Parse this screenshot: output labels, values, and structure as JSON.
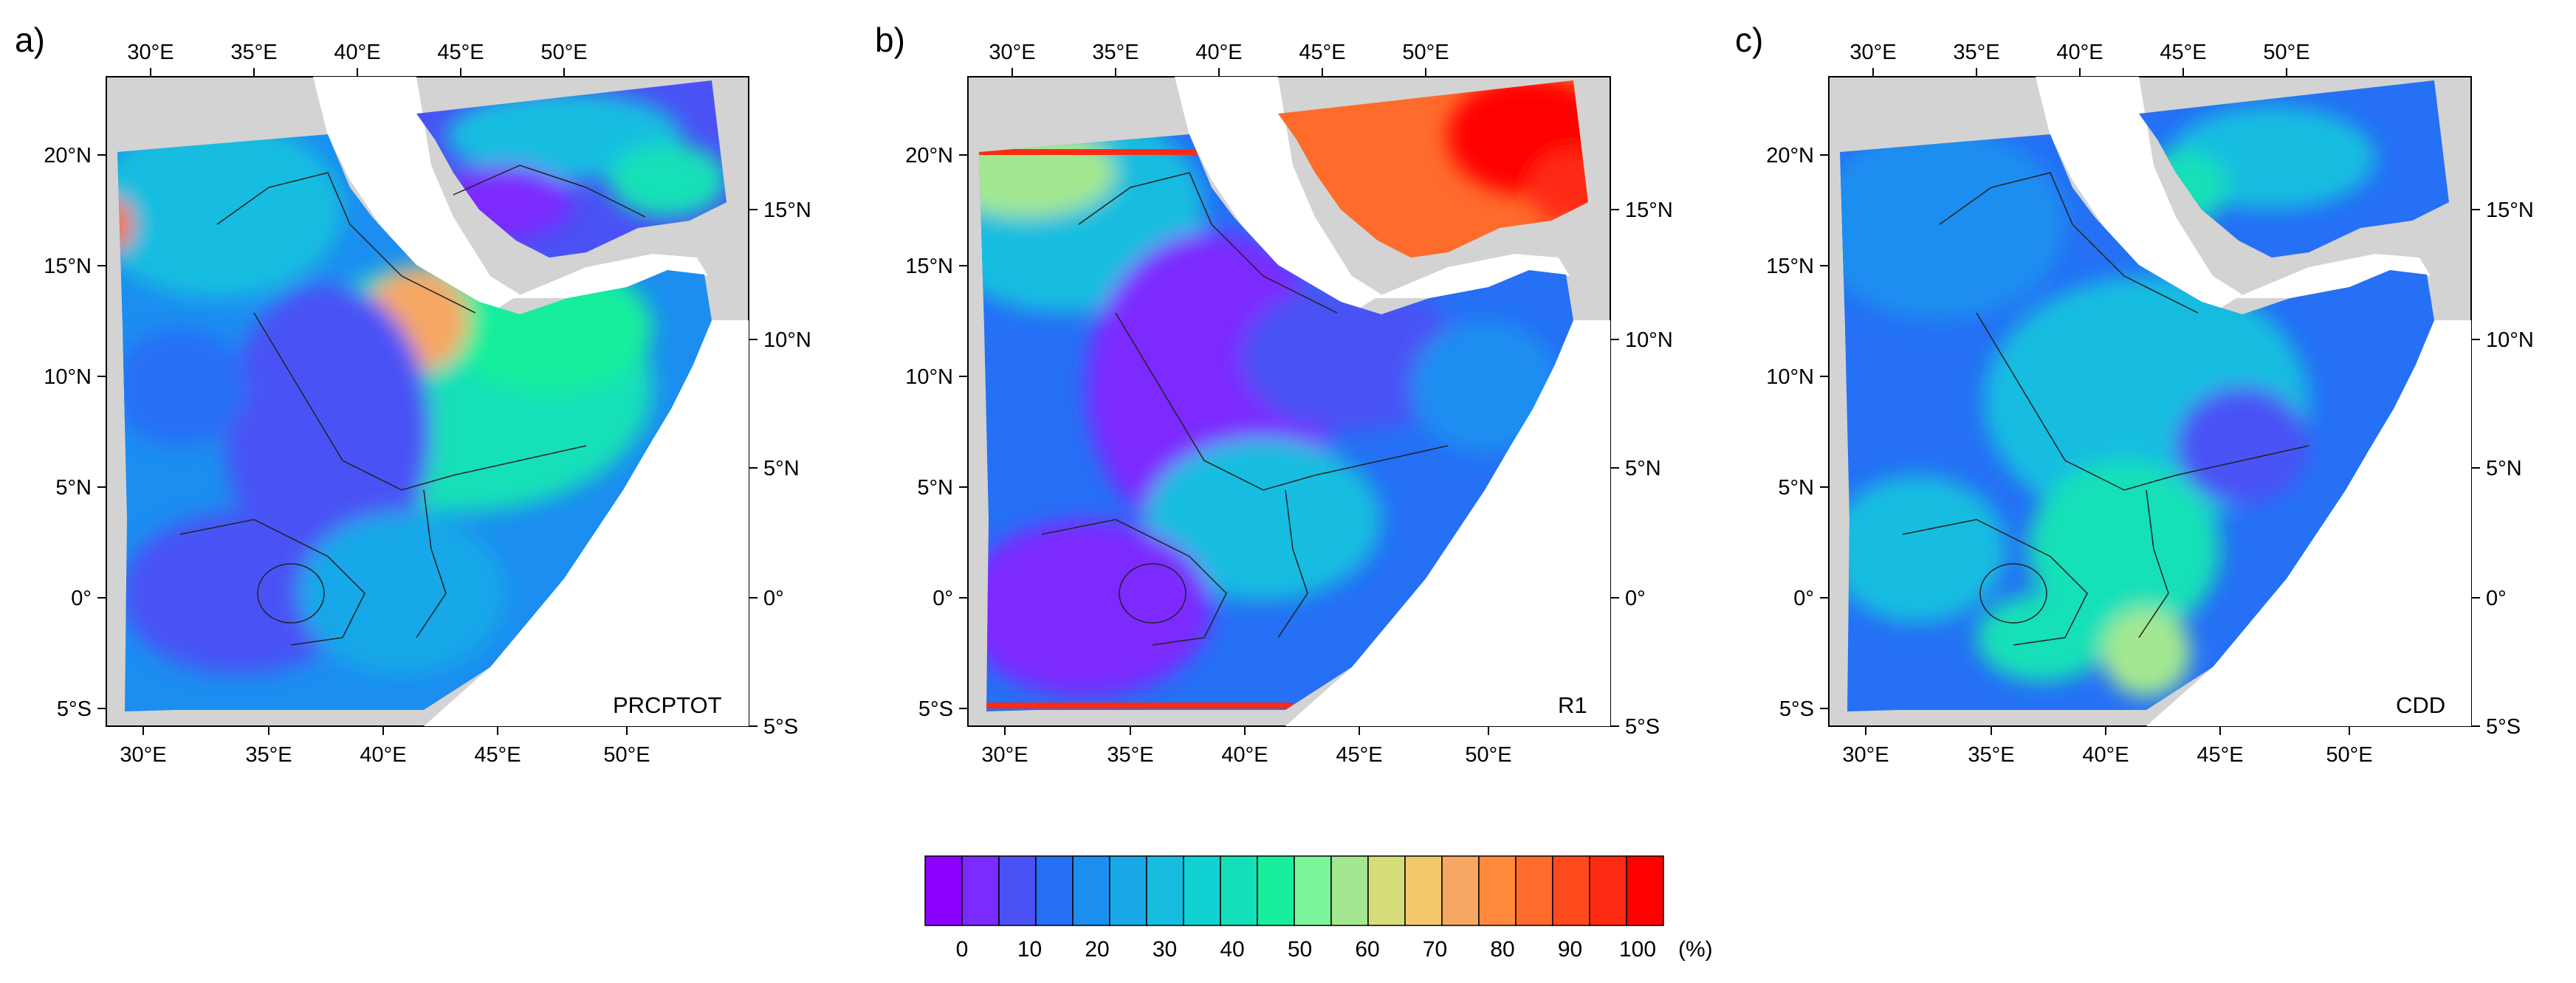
{
  "figure": {
    "panels": [
      {
        "letter": "a)",
        "index": "PRCPTOT"
      },
      {
        "letter": "b)",
        "index": "R1"
      },
      {
        "letter": "c)",
        "index": "CDD"
      }
    ],
    "axes": {
      "top_lon": [
        "30°E",
        "35°E",
        "40°E",
        "45°E",
        "50°E"
      ],
      "bottom_lon": [
        "30°E",
        "35°E",
        "40°E",
        "45°E",
        "50°E"
      ],
      "left_lat": [
        "20°N",
        "15°N",
        "10°N",
        "5°N",
        "0°",
        "5°S"
      ],
      "right_lat": [
        "15°N",
        "10°N",
        "5°N",
        "0°",
        "5°S"
      ]
    },
    "colorbar": {
      "labels": [
        "0",
        "10",
        "20",
        "30",
        "40",
        "50",
        "60",
        "70",
        "80",
        "90",
        "100"
      ],
      "unit": "(%)",
      "colors": [
        "#8b00ff",
        "#7b2bff",
        "#4a52f5",
        "#2570f5",
        "#1b8ef0",
        "#18a8e8",
        "#16bde0",
        "#10d2d2",
        "#13e0b8",
        "#19ee9d",
        "#7df59a",
        "#a3e890",
        "#d6dc78",
        "#f3c86c",
        "#f7a763",
        "#ff8a3c",
        "#ff6b2a",
        "#ff4a1e",
        "#ff2a12",
        "#ff0000"
      ]
    }
  }
}
